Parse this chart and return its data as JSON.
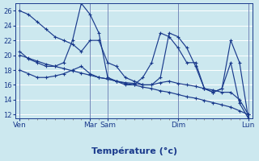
{
  "xlabel": "Température (°c)",
  "bg_color": "#cce8ef",
  "grid_color": "#b0d8e0",
  "line_color": "#1a3a8c",
  "ylim": [
    11.5,
    27
  ],
  "yticks": [
    12,
    14,
    16,
    18,
    20,
    22,
    24,
    26
  ],
  "day_labels": [
    "Ven",
    "Mar",
    "Sam",
    "Dim",
    "Lun"
  ],
  "day_positions": [
    0,
    8,
    10,
    18,
    26
  ],
  "n_points": 27,
  "xlim": [
    -0.5,
    26.5
  ],
  "series_top": [
    26,
    25.5,
    24.5,
    23.5,
    22.5,
    22,
    21.5,
    20.5,
    22,
    22,
    19,
    18.5,
    17,
    16.5,
    16,
    16,
    17,
    23,
    22.5,
    21,
    18.5,
    15.5,
    15,
    15.5,
    19,
    13.5,
    11.5
  ],
  "series_upper": [
    20.5,
    19.5,
    19,
    18.5,
    18.5,
    19,
    22,
    27,
    25.5,
    23,
    17,
    16.5,
    16,
    16,
    17,
    19,
    23,
    22.5,
    21,
    19,
    19,
    15.5,
    15,
    15.5,
    22,
    19,
    11.5
  ],
  "series_mid": [
    18,
    17.5,
    17,
    17,
    17.2,
    17.5,
    18,
    18.5,
    17.5,
    17,
    16.8,
    16.5,
    16.3,
    16.2,
    16,
    16,
    16.3,
    16.5,
    16.2,
    16,
    15.8,
    15.5,
    15.3,
    15,
    15,
    14,
    12
  ],
  "series_trend": [
    20,
    19.6,
    19.2,
    18.8,
    18.5,
    18.2,
    17.9,
    17.6,
    17.3,
    17.0,
    16.8,
    16.5,
    16.2,
    16.0,
    15.7,
    15.5,
    15.2,
    15.0,
    14.7,
    14.4,
    14.2,
    13.9,
    13.6,
    13.3,
    13.0,
    12.5,
    12.0
  ]
}
